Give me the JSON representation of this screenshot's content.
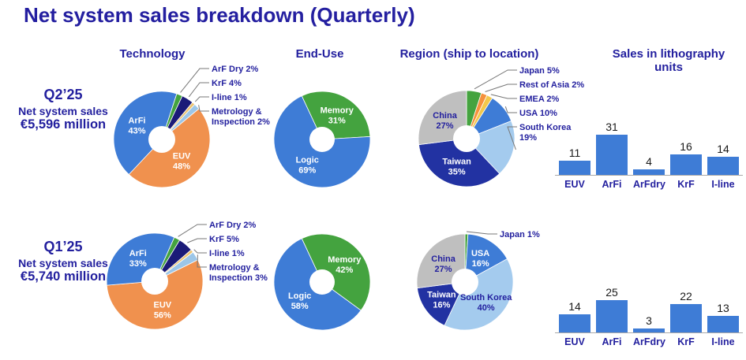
{
  "title": "Net system sales breakdown (Quarterly)",
  "column_headers": [
    "Technology",
    "End-Use",
    "Region (ship to location)",
    "Sales in lithography units"
  ],
  "rows": [
    {
      "quarter": "Q2’25",
      "label": "Net system sales",
      "amount": "€5,596 million"
    },
    {
      "quarter": "Q1’25",
      "label": "Net system sales",
      "amount": "€5,740 million"
    }
  ],
  "palette": {
    "navy_text": "#221f9e",
    "blue": "#3e7cd6",
    "orange": "#f0914e",
    "green": "#44a33f",
    "dark_navy": "#1b1b78",
    "tan": "#eec36e",
    "light_blue": "#9cc6e8",
    "taiwan_navy": "#2232a2",
    "sk_light_blue": "#a4cbee",
    "gray": "#bfbfbf",
    "emea_yellow": "#f2c84b",
    "roa_orange": "#f5913c",
    "bar_blue": "#3e7cd6",
    "leader_line": "#777777",
    "white": "#ffffff"
  },
  "chart_data": [
    {
      "id": "q2-technology",
      "type": "donut",
      "quarter": "Q2'25",
      "group": "Technology",
      "start_angle": 18,
      "slices": [
        {
          "label": "ArF Dry",
          "pct": 2,
          "color": "#44a33f",
          "placement": "callout",
          "text": "ArF Dry 2%"
        },
        {
          "label": "KrF",
          "pct": 4,
          "color": "#1b1b78",
          "placement": "callout",
          "text": "KrF 4%"
        },
        {
          "label": "I-line",
          "pct": 1,
          "color": "#eec36e",
          "placement": "callout",
          "text": "I-line 1%"
        },
        {
          "label": "Metrology & Inspection",
          "pct": 2,
          "color": "#9cc6e8",
          "placement": "callout",
          "text": "Metrology &\nInspection 2%"
        },
        {
          "label": "EUV",
          "pct": 48,
          "color": "#f0914e",
          "placement": "inside",
          "label_color": "#ffffff"
        },
        {
          "label": "ArFi",
          "pct": 43,
          "color": "#3e7cd6",
          "placement": "inside",
          "label_color": "#ffffff"
        }
      ]
    },
    {
      "id": "q2-enduse",
      "type": "donut",
      "quarter": "Q2'25",
      "group": "End-Use",
      "start_angle": -25,
      "slices": [
        {
          "label": "Memory",
          "pct": 31,
          "color": "#44a33f",
          "placement": "inside",
          "label_color": "#ffffff"
        },
        {
          "label": "Logic",
          "pct": 69,
          "color": "#3e7cd6",
          "placement": "inside",
          "label_color": "#ffffff"
        }
      ]
    },
    {
      "id": "q2-region",
      "type": "donut",
      "quarter": "Q2'25",
      "group": "Region (ship to location)",
      "start_angle": 0,
      "slices": [
        {
          "label": "Japan",
          "pct": 5,
          "color": "#44a33f",
          "placement": "callout",
          "text": "Japan 5%"
        },
        {
          "label": "Rest of Asia",
          "pct": 2,
          "color": "#f5913c",
          "placement": "callout",
          "text": "Rest of Asia 2%"
        },
        {
          "label": "EMEA",
          "pct": 2,
          "color": "#f2c84b",
          "placement": "callout",
          "text": "EMEA 2%"
        },
        {
          "label": "USA",
          "pct": 10,
          "color": "#3e7cd6",
          "placement": "callout",
          "text": "USA 10%"
        },
        {
          "label": "South Korea",
          "pct": 19,
          "color": "#a4cbee",
          "placement": "callout",
          "text": "South Korea\n19%"
        },
        {
          "label": "Taiwan",
          "pct": 35,
          "color": "#2232a2",
          "placement": "inside",
          "label_color": "#ffffff"
        },
        {
          "label": "China",
          "pct": 27,
          "color": "#bfbfbf",
          "placement": "inside",
          "label_color": "#221f9e"
        }
      ]
    },
    {
      "id": "q2-litho",
      "type": "bar",
      "quarter": "Q2'25",
      "group": "Sales in lithography units",
      "categories": [
        "EUV",
        "ArFi",
        "ArFdry",
        "KrF",
        "I-line"
      ],
      "values": [
        11,
        31,
        4,
        16,
        14
      ],
      "bar_color": "#3e7cd6"
    },
    {
      "id": "q1-technology",
      "type": "donut",
      "quarter": "Q1'25",
      "group": "Technology",
      "start_angle": 24,
      "slices": [
        {
          "label": "ArF Dry",
          "pct": 2,
          "color": "#44a33f",
          "placement": "callout",
          "text": "ArF Dry 2%"
        },
        {
          "label": "KrF",
          "pct": 5,
          "color": "#1b1b78",
          "placement": "callout",
          "text": "KrF 5%"
        },
        {
          "label": "I-line",
          "pct": 1,
          "color": "#eec36e",
          "placement": "callout",
          "text": "I-line 1%"
        },
        {
          "label": "Metrology & Inspection",
          "pct": 3,
          "color": "#9cc6e8",
          "placement": "callout",
          "text": "Metrology &\nInspection 3%"
        },
        {
          "label": "EUV",
          "pct": 56,
          "color": "#f0914e",
          "placement": "inside",
          "label_color": "#ffffff"
        },
        {
          "label": "ArFi",
          "pct": 33,
          "color": "#3e7cd6",
          "placement": "inside",
          "label_color": "#ffffff"
        }
      ]
    },
    {
      "id": "q1-enduse",
      "type": "donut",
      "quarter": "Q1'25",
      "group": "End-Use",
      "start_angle": -25,
      "slices": [
        {
          "label": "Memory",
          "pct": 42,
          "color": "#44a33f",
          "placement": "inside",
          "label_color": "#ffffff"
        },
        {
          "label": "Logic",
          "pct": 58,
          "color": "#3e7cd6",
          "placement": "inside",
          "label_color": "#ffffff"
        }
      ]
    },
    {
      "id": "q1-region",
      "type": "donut",
      "quarter": "Q1'25",
      "group": "Region (ship to location)",
      "start_angle": 0,
      "slices": [
        {
          "label": "Japan",
          "pct": 1,
          "color": "#44a33f",
          "placement": "callout",
          "text": "Japan 1%"
        },
        {
          "label": "USA",
          "pct": 16,
          "color": "#3e7cd6",
          "placement": "inside",
          "label_color": "#ffffff"
        },
        {
          "label": "South Korea",
          "pct": 40,
          "color": "#a4cbee",
          "placement": "inside",
          "label_color": "#221f9e"
        },
        {
          "label": "Taiwan",
          "pct": 16,
          "color": "#2232a2",
          "placement": "inside",
          "label_color": "#ffffff"
        },
        {
          "label": "China",
          "pct": 27,
          "color": "#bfbfbf",
          "placement": "inside",
          "label_color": "#221f9e"
        }
      ]
    },
    {
      "id": "q1-litho",
      "type": "bar",
      "quarter": "Q1'25",
      "group": "Sales in lithography units",
      "categories": [
        "EUV",
        "ArFi",
        "ArFdry",
        "KrF",
        "I-line"
      ],
      "values": [
        14,
        25,
        3,
        22,
        13
      ],
      "bar_color": "#3e7cd6"
    }
  ]
}
